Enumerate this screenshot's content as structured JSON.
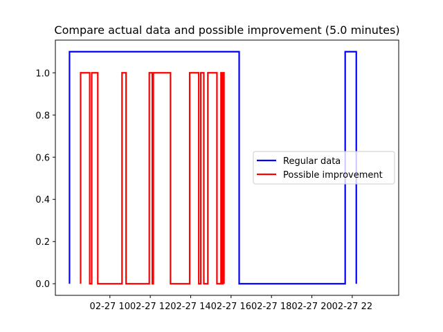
{
  "chart_data": {
    "type": "line",
    "title": "Compare actual data and possible improvement (5.0 minutes)",
    "xlabel": "",
    "ylabel": "",
    "x_axis": {
      "unit": "hours of day on 02-27",
      "range": [
        7.3,
        24.3
      ],
      "ticks": [
        {
          "value": 10,
          "label": "02-27 10"
        },
        {
          "value": 12,
          "label": "02-27 12"
        },
        {
          "value": 14,
          "label": "02-27 14"
        },
        {
          "value": 16,
          "label": "02-27 16"
        },
        {
          "value": 18,
          "label": "02-27 18"
        },
        {
          "value": 20,
          "label": "02-27 20"
        },
        {
          "value": 22,
          "label": "02-27 22"
        }
      ]
    },
    "y_axis": {
      "range": [
        -0.055,
        1.155
      ],
      "ticks": [
        {
          "value": 0.0,
          "label": "0.0"
        },
        {
          "value": 0.2,
          "label": "0.2"
        },
        {
          "value": 0.4,
          "label": "0.4"
        },
        {
          "value": 0.6,
          "label": "0.6"
        },
        {
          "value": 0.8,
          "label": "0.8"
        },
        {
          "value": 1.0,
          "label": "1.0"
        }
      ]
    },
    "grid": false,
    "legend_position": "center-right",
    "series": [
      {
        "name": "Regular data",
        "color": "#0000ff",
        "step": true,
        "points": [
          [
            8.0,
            0.0
          ],
          [
            8.0,
            1.1
          ],
          [
            16.4,
            1.1
          ],
          [
            16.4,
            0.0
          ],
          [
            21.65,
            0.0
          ],
          [
            21.65,
            1.1
          ],
          [
            22.2,
            1.1
          ],
          [
            22.2,
            0.0
          ]
        ]
      },
      {
        "name": "Possible improvement",
        "color": "#ff0000",
        "step": true,
        "points": [
          [
            8.55,
            0.0
          ],
          [
            8.55,
            1.0
          ],
          [
            9.0,
            1.0
          ],
          [
            9.0,
            0.0
          ],
          [
            9.1,
            0.0
          ],
          [
            9.1,
            1.0
          ],
          [
            9.4,
            1.0
          ],
          [
            9.4,
            0.0
          ],
          [
            10.6,
            0.0
          ],
          [
            10.6,
            1.0
          ],
          [
            10.8,
            1.0
          ],
          [
            10.8,
            0.0
          ],
          [
            11.95,
            0.0
          ],
          [
            11.95,
            1.0
          ],
          [
            12.1,
            1.0
          ],
          [
            12.1,
            0.0
          ],
          [
            12.15,
            0.0
          ],
          [
            12.15,
            1.0
          ],
          [
            13.0,
            1.0
          ],
          [
            13.0,
            0.0
          ],
          [
            13.95,
            0.0
          ],
          [
            13.95,
            1.0
          ],
          [
            14.4,
            1.0
          ],
          [
            14.4,
            0.0
          ],
          [
            14.5,
            0.0
          ],
          [
            14.5,
            1.0
          ],
          [
            14.65,
            1.0
          ],
          [
            14.65,
            0.0
          ],
          [
            14.85,
            0.0
          ],
          [
            14.85,
            1.0
          ],
          [
            15.3,
            1.0
          ],
          [
            15.3,
            0.0
          ],
          [
            15.5,
            0.0
          ],
          [
            15.5,
            1.0
          ],
          [
            15.55,
            1.0
          ],
          [
            15.55,
            0.0
          ],
          [
            15.6,
            0.0
          ],
          [
            15.6,
            1.0
          ],
          [
            15.65,
            1.0
          ],
          [
            15.65,
            0.0
          ]
        ]
      }
    ]
  }
}
